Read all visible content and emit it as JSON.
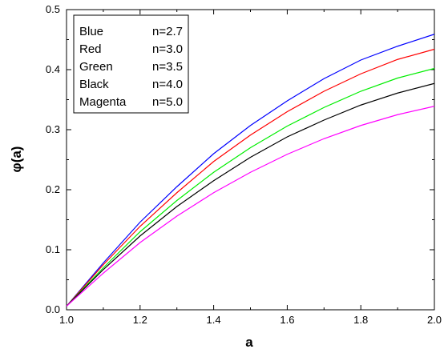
{
  "chart_data": {
    "type": "line",
    "title": "",
    "xlabel": "a",
    "ylabel": "φ(a)",
    "xlim": [
      1.0,
      2.0
    ],
    "ylim": [
      0.0,
      0.5
    ],
    "xticks": [
      "1.0",
      "1.2",
      "1.4",
      "1.6",
      "1.8",
      "2.0"
    ],
    "yticks": [
      "0.0",
      "0.1",
      "0.2",
      "0.3",
      "0.4",
      "0.5"
    ],
    "x": [
      1.0,
      1.1,
      1.2,
      1.3,
      1.4,
      1.5,
      1.6,
      1.7,
      1.8,
      1.9,
      2.0
    ],
    "series": [
      {
        "legend_name": "Blue",
        "legend_value": "n=2.7",
        "color": "#0000ff",
        "values": [
          0.006,
          0.078,
          0.146,
          0.205,
          0.26,
          0.307,
          0.348,
          0.385,
          0.416,
          0.439,
          0.459
        ]
      },
      {
        "legend_name": "Red",
        "legend_value": "n=3.0",
        "color": "#ff0000",
        "values": [
          0.006,
          0.075,
          0.139,
          0.195,
          0.247,
          0.291,
          0.33,
          0.364,
          0.393,
          0.417,
          0.434
        ]
      },
      {
        "legend_name": "Green",
        "legend_value": "n=3.5",
        "color": "#00ee00",
        "values": [
          0.006,
          0.07,
          0.13,
          0.182,
          0.229,
          0.27,
          0.306,
          0.337,
          0.364,
          0.386,
          0.402
        ]
      },
      {
        "legend_name": "Black",
        "legend_value": "n=4.0",
        "color": "#000000",
        "values": [
          0.006,
          0.067,
          0.123,
          0.172,
          0.215,
          0.254,
          0.288,
          0.316,
          0.341,
          0.361,
          0.377
        ]
      },
      {
        "legend_name": "Magenta",
        "legend_value": "n=5.0",
        "color": "#ff00ff",
        "values": [
          0.006,
          0.061,
          0.112,
          0.156,
          0.195,
          0.229,
          0.259,
          0.285,
          0.307,
          0.325,
          0.339
        ]
      }
    ],
    "grid": false,
    "legend_position": "top-left"
  }
}
